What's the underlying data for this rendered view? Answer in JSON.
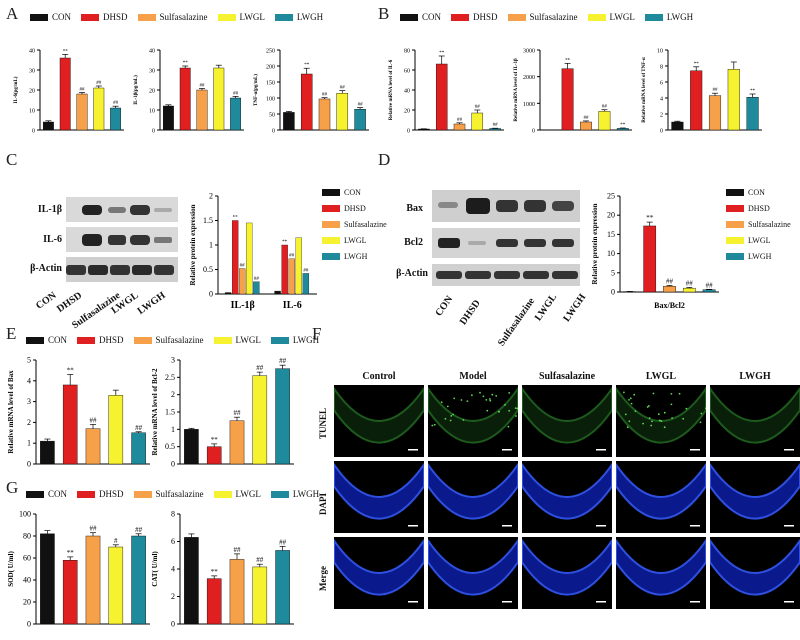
{
  "panels": {
    "A": "A",
    "B": "B",
    "C": "C",
    "D": "D",
    "E": "E",
    "F": "F",
    "G": "G"
  },
  "colors": {
    "CON": "#111111",
    "DHSD": "#e02020",
    "Sulfasalazine": "#f7a04a",
    "LWGL": "#f7f230",
    "LWGH": "#1f8a9c"
  },
  "legend": [
    "CON",
    "DHSD",
    "Sulfasalazine",
    "LWGL",
    "LWGH"
  ],
  "blots": {
    "C": {
      "rows": [
        "IL-1β",
        "IL-6",
        "β-Actin"
      ],
      "lanes": [
        "CON",
        "DHSD",
        "Sulfasalazine",
        "LWGL",
        "LWGH"
      ]
    },
    "D": {
      "rows": [
        "Bax",
        "Bcl2",
        "β-Actin"
      ],
      "lanes": [
        "CON",
        "DHSD",
        "Sulfasalazine",
        "LWGL",
        "LWGH"
      ]
    }
  },
  "microscopy": {
    "columns": [
      "Control",
      "Model",
      "Sulfasalazine",
      "LWGL",
      "LWGH"
    ],
    "rows": [
      "TUNEL",
      "DAPI",
      "Merge"
    ]
  },
  "chart_data": [
    {
      "id": "A1",
      "type": "bar",
      "categories": [
        "CON",
        "DHSD",
        "Sulfasalazine",
        "LWGL",
        "LWGH"
      ],
      "values": [
        4,
        36,
        18,
        21,
        11
      ],
      "errors": [
        0.6,
        1.8,
        0.8,
        1.0,
        0.9
      ],
      "annotations": [
        "",
        "**",
        "##",
        "##",
        "##"
      ],
      "ylabel": "IL-6(pg/mL)",
      "ylim": [
        0,
        40
      ],
      "yticks": [
        0,
        10,
        20,
        30,
        40
      ]
    },
    {
      "id": "A2",
      "type": "bar",
      "categories": [
        "CON",
        "DHSD",
        "Sulfasalazine",
        "LWGL",
        "LWGH"
      ],
      "values": [
        12,
        31,
        20,
        31,
        16
      ],
      "errors": [
        0.6,
        1.0,
        0.8,
        1.4,
        0.8
      ],
      "annotations": [
        "",
        "**",
        "##",
        "",
        "##"
      ],
      "ylabel": "IL-1β(pg/mL)",
      "ylim": [
        0,
        40
      ],
      "yticks": [
        0,
        10,
        20,
        30,
        40
      ]
    },
    {
      "id": "A3",
      "type": "bar",
      "categories": [
        "CON",
        "DHSD",
        "Sulfasalazine",
        "LWGL",
        "LWGH"
      ],
      "values": [
        55,
        175,
        97,
        115,
        65
      ],
      "errors": [
        3,
        18,
        4,
        8,
        5
      ],
      "annotations": [
        "",
        "**",
        "##",
        "##",
        "##"
      ],
      "ylabel": "TNF-α(pg/mL)",
      "ylim": [
        0,
        250
      ],
      "yticks": [
        0,
        50,
        100,
        150,
        200,
        250
      ]
    },
    {
      "id": "B1",
      "type": "bar",
      "categories": [
        "CON",
        "DHSD",
        "Sulfasalazine",
        "LWGL",
        "LWGH"
      ],
      "values": [
        1,
        66,
        6,
        17,
        1.5
      ],
      "errors": [
        0.2,
        8,
        1.2,
        3,
        0.3
      ],
      "annotations": [
        "",
        "**",
        "##",
        "##",
        "##"
      ],
      "ylabel": "Relative mRNA level of IL-6",
      "ylim": [
        0,
        80
      ],
      "yticks": [
        0,
        20,
        40,
        60,
        80
      ]
    },
    {
      "id": "B2",
      "type": "bar",
      "categories": [
        "CON",
        "DHSD",
        "Sulfasalazine",
        "LWGL",
        "LWGH"
      ],
      "values": [
        5,
        2300,
        300,
        700,
        60
      ],
      "errors": [
        1,
        200,
        40,
        60,
        15
      ],
      "annotations": [
        "",
        "**",
        "##",
        "##",
        "**"
      ],
      "ylabel": "Relative mRNA level of IL-1β",
      "ylim": [
        0,
        3000
      ],
      "yticks": [
        0,
        1000,
        2000,
        3000
      ]
    },
    {
      "id": "B3",
      "type": "bar",
      "categories": [
        "CON",
        "DHSD",
        "Sulfasalazine",
        "LWGL",
        "LWGH"
      ],
      "values": [
        1,
        7.4,
        4.3,
        7.6,
        4.1
      ],
      "errors": [
        0.1,
        0.5,
        0.3,
        0.9,
        0.4
      ],
      "annotations": [
        "",
        "**",
        "##",
        "",
        "**"
      ],
      "ylabel": "Relative mRNA level of TNF-α",
      "ylim": [
        0,
        10
      ],
      "yticks": [
        0,
        2,
        4,
        6,
        8,
        10
      ]
    },
    {
      "id": "C",
      "type": "bar",
      "categories": [
        "IL-1β",
        "IL-6"
      ],
      "series": [
        {
          "name": "CON",
          "values": [
            0.03,
            0.06
          ]
        },
        {
          "name": "DHSD",
          "values": [
            1.5,
            1.0
          ]
        },
        {
          "name": "Sulfasalazine",
          "values": [
            0.52,
            0.72
          ]
        },
        {
          "name": "LWGL",
          "values": [
            1.45,
            1.15
          ]
        },
        {
          "name": "LWGH",
          "values": [
            0.25,
            0.42
          ]
        }
      ],
      "annotations": [
        [
          "",
          "**",
          "##",
          "",
          "##"
        ],
        [
          "",
          "**",
          "##",
          "",
          "##"
        ]
      ],
      "ylabel": "Relative protein expression",
      "ylim": [
        0,
        2.0
      ],
      "yticks": [
        0,
        0.5,
        1.0,
        1.5,
        2.0
      ]
    },
    {
      "id": "D",
      "type": "bar",
      "categories": [
        "CON",
        "DHSD",
        "Sulfasalazine",
        "LWGL",
        "LWGH"
      ],
      "values": [
        0.1,
        17.2,
        1.5,
        1.0,
        0.6
      ],
      "errors": [
        0.05,
        1.0,
        0.2,
        0.2,
        0.1
      ],
      "annotations": [
        "",
        "**",
        "##",
        "##",
        "##"
      ],
      "xlabel": "Bax/Bcl2",
      "ylabel": "Relative protein expression",
      "ylim": [
        0,
        25
      ],
      "yticks": [
        0,
        5,
        10,
        15,
        20,
        25
      ]
    },
    {
      "id": "E1",
      "type": "bar",
      "categories": [
        "CON",
        "DHSD",
        "Sulfasalazine",
        "LWGL",
        "LWGH"
      ],
      "values": [
        1.1,
        3.8,
        1.7,
        3.3,
        1.5
      ],
      "errors": [
        0.1,
        0.5,
        0.2,
        0.25,
        0.05
      ],
      "annotations": [
        "",
        "**",
        "##",
        "",
        "##"
      ],
      "ylabel": "Relative mRNA level of Bax",
      "ylim": [
        0,
        5
      ],
      "yticks": [
        0,
        1,
        2,
        3,
        4,
        5
      ]
    },
    {
      "id": "E2",
      "type": "bar",
      "categories": [
        "CON",
        "DHSD",
        "Sulfasalazine",
        "LWGL",
        "LWGH"
      ],
      "values": [
        1.0,
        0.5,
        1.25,
        2.55,
        2.75
      ],
      "errors": [
        0.03,
        0.08,
        0.1,
        0.1,
        0.1
      ],
      "annotations": [
        "",
        "**",
        "##",
        "##",
        "##"
      ],
      "ylabel": "Relative mRNA level of Bcl-2",
      "ylim": [
        0,
        3.0
      ],
      "yticks": [
        0.0,
        0.5,
        1.0,
        1.5,
        2.0,
        2.5,
        3.0
      ]
    },
    {
      "id": "G1",
      "type": "bar",
      "categories": [
        "CON",
        "DHSD",
        "Sulfasalazine",
        "LWGL",
        "LWGH"
      ],
      "values": [
        82,
        58,
        80,
        70,
        80
      ],
      "errors": [
        3,
        3,
        3,
        2,
        2
      ],
      "annotations": [
        "",
        "**",
        "##",
        "#",
        "##"
      ],
      "ylabel": "SOD( U/ml)",
      "ylim": [
        0,
        100
      ],
      "yticks": [
        0,
        20,
        40,
        60,
        80,
        100
      ]
    },
    {
      "id": "G2",
      "type": "bar",
      "categories": [
        "CON",
        "DHSD",
        "Sulfasalazine",
        "LWGL",
        "LWGH"
      ],
      "values": [
        6.3,
        3.3,
        4.7,
        4.15,
        5.35
      ],
      "errors": [
        0.25,
        0.2,
        0.4,
        0.2,
        0.3
      ],
      "annotations": [
        "",
        "**",
        "##",
        "##",
        "##"
      ],
      "ylabel": "CAT( U/ml)",
      "ylim": [
        0,
        8
      ],
      "yticks": [
        0,
        2,
        4,
        6,
        8
      ]
    }
  ]
}
